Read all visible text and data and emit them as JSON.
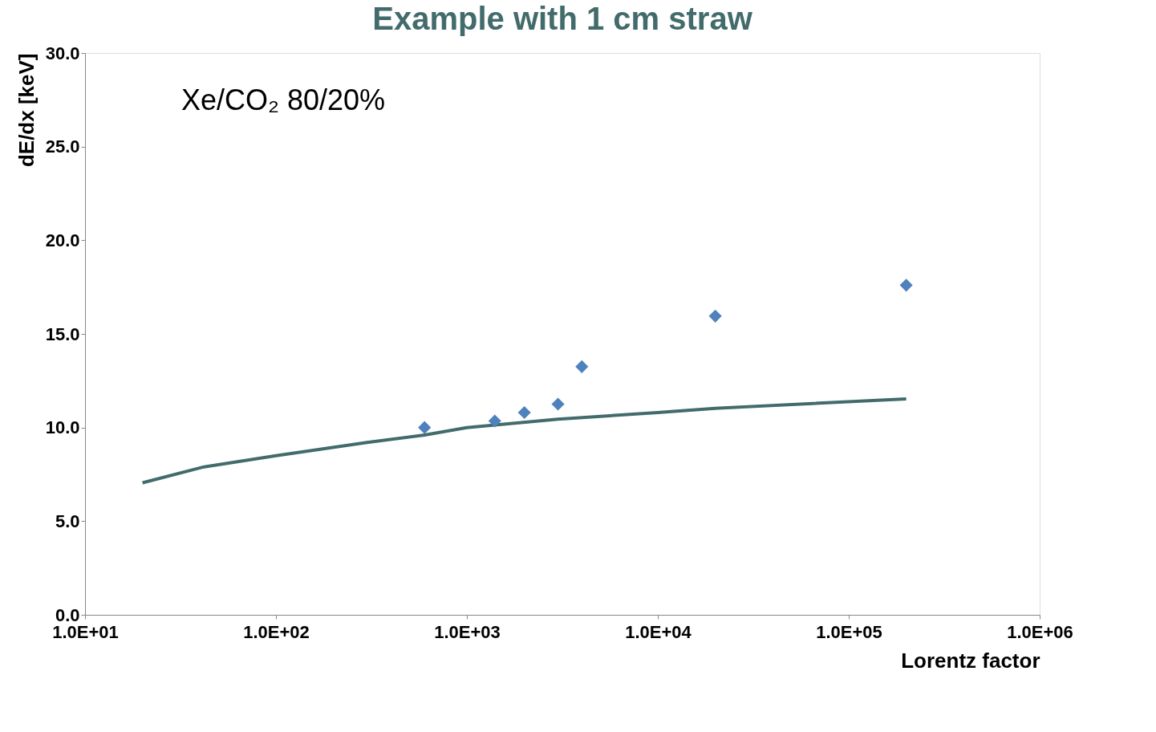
{
  "chart_data": {
    "type": "scatter",
    "title": "Example with 1 cm straw",
    "xlabel": "Lorentz factor",
    "ylabel": "dE/dx  [keV]",
    "annotations": [
      "Xe/CO₂ 80/20%"
    ],
    "log": "x",
    "grid": false,
    "legend": false,
    "xlim": [
      10,
      1000000
    ],
    "xticks": [
      {
        "value": 10,
        "label": "1.0E+01"
      },
      {
        "value": 100,
        "label": "1.0E+02"
      },
      {
        "value": 1000,
        "label": "1.0E+03"
      },
      {
        "value": 10000,
        "label": "1.0E+04"
      },
      {
        "value": 100000,
        "label": "1.0E+05"
      },
      {
        "value": 1000000,
        "label": "1.0E+06"
      }
    ],
    "ylim": [
      0,
      30
    ],
    "yticks": [
      {
        "value": 0,
        "label": "0.0"
      },
      {
        "value": 5,
        "label": "5.0"
      },
      {
        "value": 10,
        "label": "10.0"
      },
      {
        "value": 15,
        "label": "15.0"
      },
      {
        "value": 20,
        "label": "20.0"
      },
      {
        "value": 25,
        "label": "25.0"
      },
      {
        "value": 30,
        "label": "30.0"
      }
    ],
    "series": [
      {
        "type": "line",
        "color": "#436b6b",
        "marker": "none",
        "line_style": "solid",
        "x": [
          20,
          42,
          100,
          300,
          600,
          1000,
          3000,
          10000,
          20000,
          200000
        ],
        "values": [
          7.05,
          7.9,
          8.5,
          9.2,
          9.6,
          10.0,
          10.45,
          10.8,
          11.03,
          11.53
        ]
      },
      {
        "type": "scatter",
        "color": "#4f81bd",
        "marker": "diamond",
        "x": [
          600,
          1400,
          2000,
          3000,
          4000,
          20000,
          200000
        ],
        "values": [
          10.0,
          10.35,
          10.8,
          11.25,
          13.25,
          15.95,
          17.6
        ]
      }
    ]
  }
}
